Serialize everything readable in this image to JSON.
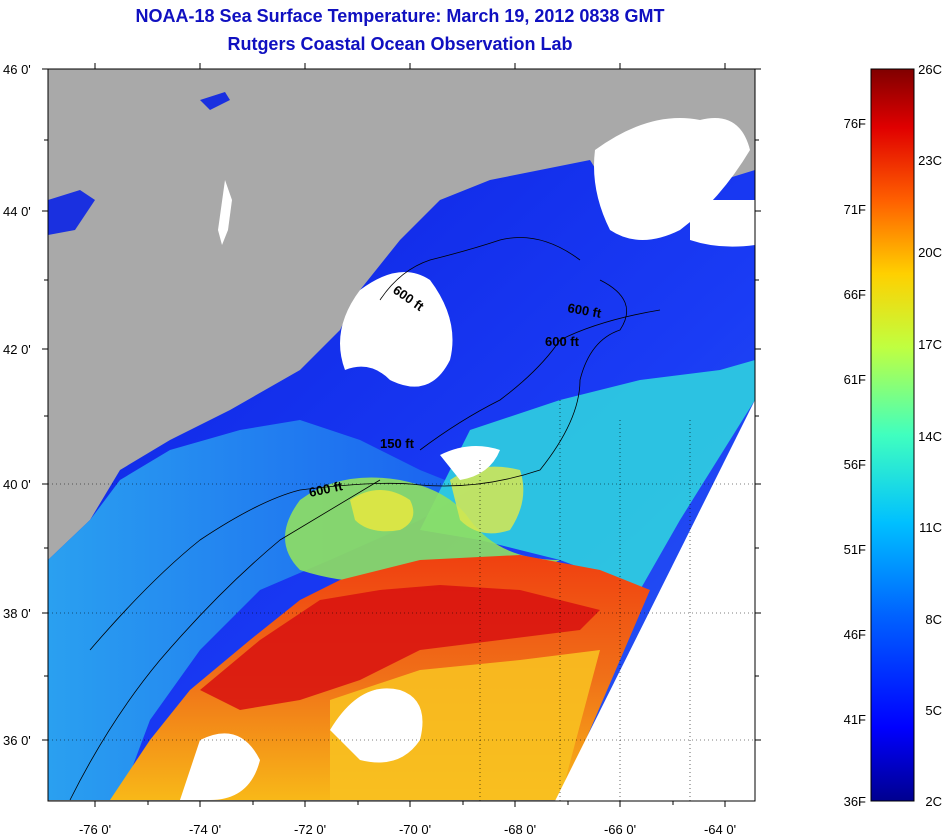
{
  "title_line1": "NOAA-18 Sea Surface Temperature:  March 19, 2012 0838 GMT",
  "title_line2": "Rutgers Coastal Ocean Observation Lab",
  "map": {
    "lat_labels": [
      "46 0'",
      "44 0'",
      "42 0'",
      "40 0'",
      "38 0'",
      "36 0'"
    ],
    "lon_labels": [
      "-76 0'",
      "-74 0'",
      "-72 0'",
      "-70 0'",
      "-68 0'",
      "-66 0'",
      "-64 0'"
    ],
    "contour_labels": [
      "600 ft",
      "600 ft",
      "600 ft",
      "150 ft",
      "600 ft"
    ],
    "colors": {
      "land": "#a9a9a9",
      "cloud": "#ffffff",
      "contour": "#000000"
    }
  },
  "colorbar": {
    "fahrenheit_labels": [
      "76F",
      "71F",
      "66F",
      "61F",
      "56F",
      "51F",
      "46F",
      "41F",
      "36F"
    ],
    "celsius_labels": [
      "26C",
      "23C",
      "20C",
      "17C",
      "14C",
      "11C",
      "8C",
      "5C",
      "2C"
    ],
    "colors": [
      "#00008f",
      "#0000ff",
      "#0060ff",
      "#00c0ff",
      "#40ffbf",
      "#c0ff40",
      "#ffd000",
      "#ff6000",
      "#e00000",
      "#800000"
    ]
  }
}
